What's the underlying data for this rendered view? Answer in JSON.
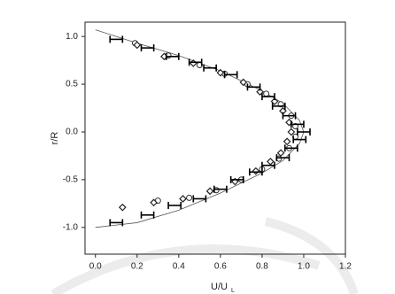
{
  "chart_data": {
    "type": "scatter",
    "x_label": {
      "text": "U/U",
      "subscript": "L"
    },
    "y_label": "r/R",
    "xlim": [
      -0.05,
      1.2
    ],
    "ylim": [
      -1.28,
      1.15
    ],
    "xticks": [
      {
        "value": 0,
        "label": "0.0"
      },
      {
        "value": 0.2,
        "label": "0.2"
      },
      {
        "value": 0.4,
        "label": "0.4"
      },
      {
        "value": 0.6,
        "label": "0.6"
      },
      {
        "value": 0.8,
        "label": "0.8"
      },
      {
        "value": 1,
        "label": "1.0"
      },
      {
        "value": 1.2,
        "label": "1.2"
      }
    ],
    "yticks": [
      {
        "value": 1,
        "label": "1.0"
      },
      {
        "value": 0.5,
        "label": "0.5"
      },
      {
        "value": 0,
        "label": "0.0"
      },
      {
        "value": -0.5,
        "label": "-0.5"
      },
      {
        "value": -1,
        "label": "-1.0"
      }
    ],
    "series": [
      {
        "marker": "line",
        "color": "#555555",
        "x": [
          0.0,
          0.2,
          0.4,
          0.6,
          0.8,
          0.9,
          0.98,
          1.0,
          0.98,
          0.9,
          0.8,
          0.6,
          0.4,
          0.2,
          0.0
        ],
        "values": [
          1.07,
          0.93,
          0.8,
          0.64,
          0.43,
          0.3,
          0.12,
          0.0,
          -0.12,
          -0.3,
          -0.43,
          -0.64,
          -0.82,
          -0.95,
          -1.0
        ]
      },
      {
        "marker": "circle",
        "color": "#333333",
        "x": [
          0.19,
          0.35,
          0.5,
          0.62,
          0.73,
          0.82,
          0.89,
          0.94,
          0.96,
          0.96,
          0.93,
          0.88,
          0.8,
          0.7,
          0.58,
          0.45,
          0.3
        ],
        "values": [
          0.93,
          0.8,
          0.7,
          0.61,
          0.5,
          0.4,
          0.29,
          0.17,
          0.06,
          -0.05,
          -0.17,
          -0.28,
          -0.39,
          -0.5,
          -0.61,
          -0.69,
          -0.72
        ]
      },
      {
        "marker": "diamond",
        "color": "#222222",
        "x": [
          0.2,
          0.33,
          0.47,
          0.6,
          0.71,
          0.79,
          0.86,
          0.9,
          0.93,
          0.94,
          0.92,
          0.89,
          0.84,
          0.77,
          0.67,
          0.55,
          0.42,
          0.28,
          0.13
        ],
        "values": [
          0.91,
          0.79,
          0.72,
          0.62,
          0.52,
          0.42,
          0.32,
          0.22,
          0.1,
          0.0,
          -0.1,
          -0.22,
          -0.31,
          -0.41,
          -0.52,
          -0.62,
          -0.7,
          -0.74,
          -0.79
        ]
      },
      {
        "marker": "errorbar",
        "color": "#000000",
        "x": [
          0.1,
          0.25,
          0.37,
          0.48,
          0.55,
          0.65,
          0.76,
          0.83,
          0.88,
          0.93,
          0.97,
          1.0,
          0.98,
          0.94,
          0.9,
          0.83,
          0.77,
          0.68,
          0.6,
          0.5,
          0.38,
          0.25,
          0.1
        ],
        "values": [
          0.97,
          0.88,
          0.79,
          0.73,
          0.67,
          0.6,
          0.47,
          0.37,
          0.27,
          0.17,
          0.08,
          0.0,
          -0.08,
          -0.17,
          -0.27,
          -0.35,
          -0.42,
          -0.5,
          -0.6,
          -0.7,
          -0.77,
          -0.87,
          -0.95
        ],
        "xerr": [
          0.03,
          0.03,
          0.03,
          0.03,
          0.03,
          0.03,
          0.03,
          0.03,
          0.03,
          0.03,
          0.03,
          0.03,
          0.03,
          0.03,
          0.03,
          0.03,
          0.03,
          0.03,
          0.03,
          0.03,
          0.03,
          0.03,
          0.03
        ]
      }
    ]
  }
}
